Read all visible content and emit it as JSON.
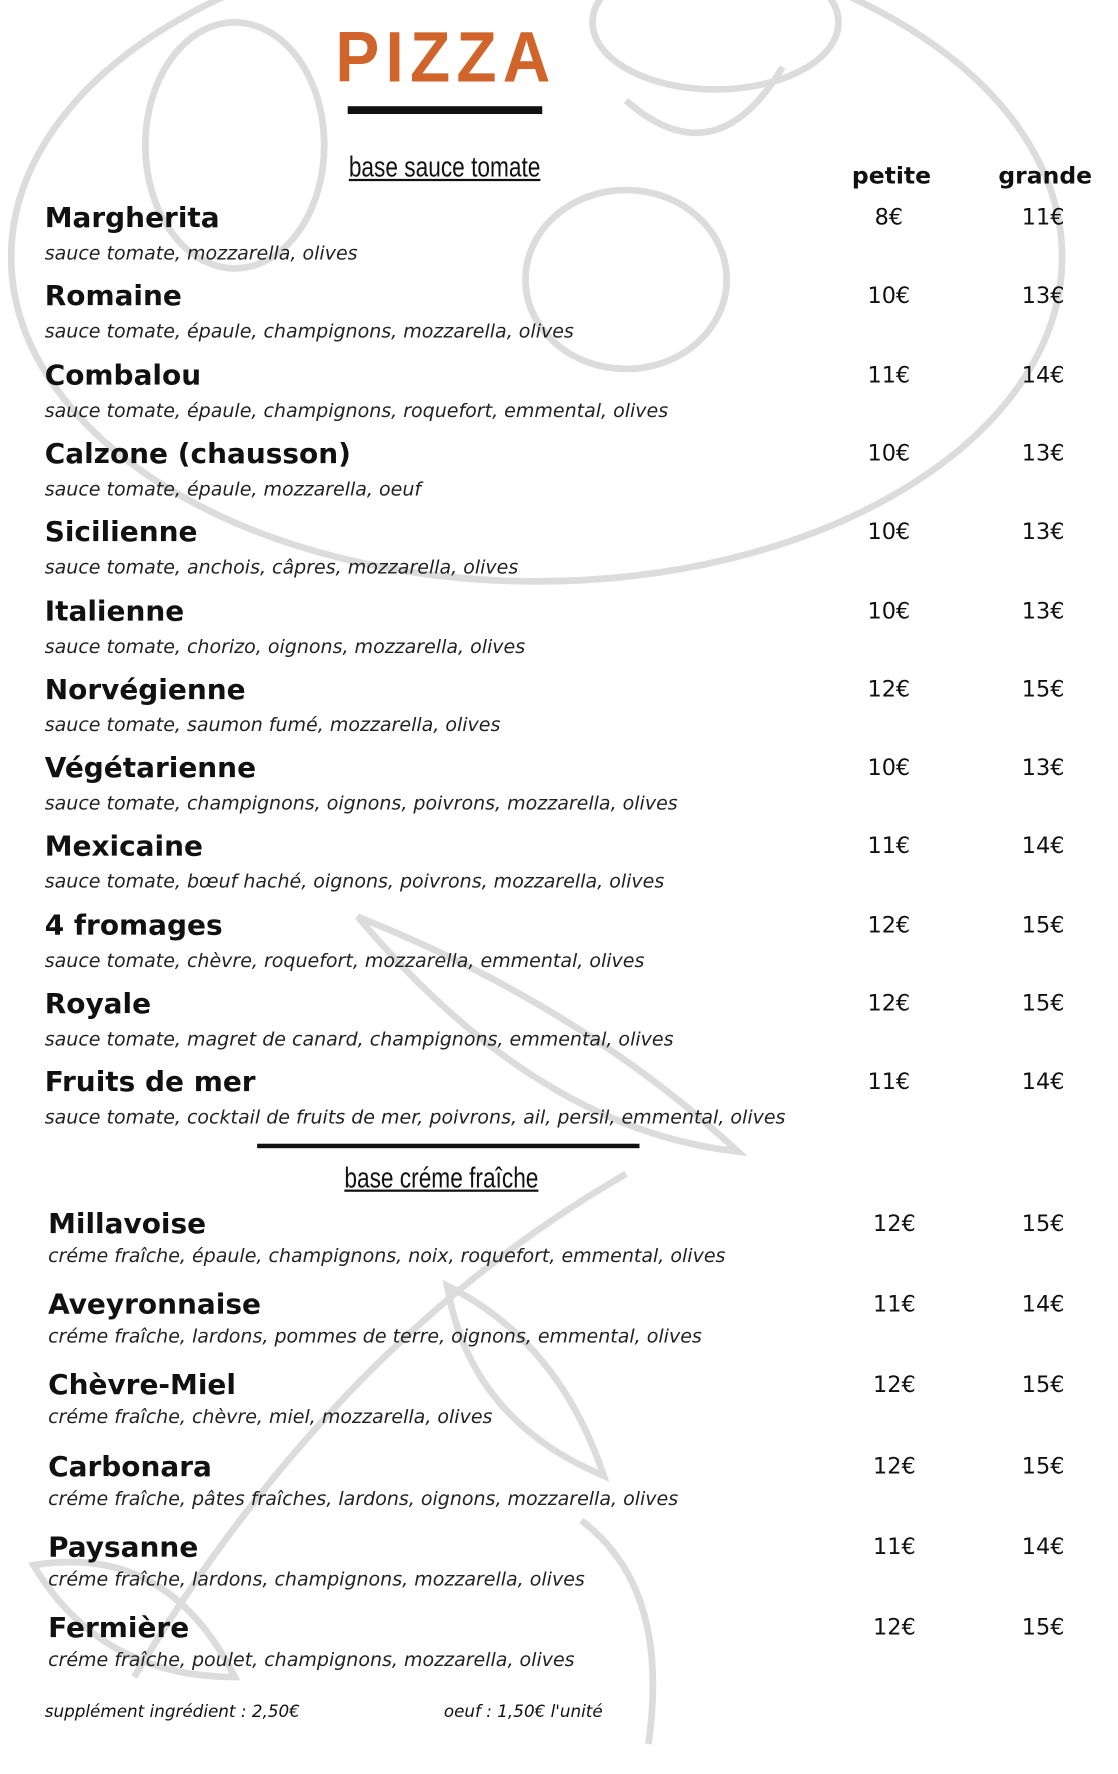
{
  "title": "PIZZA",
  "accent_color": "#d0642a",
  "columns": {
    "small": "petite",
    "large": "grande"
  },
  "sections": [
    {
      "heading": "base sauce tomate",
      "items": [
        {
          "name": "Margherita",
          "desc": "sauce tomate, mozzarella, olives",
          "small": "8€",
          "large": "11€"
        },
        {
          "name": "Romaine",
          "desc": "sauce tomate, épaule, champignons, mozzarella, olives",
          "small": "10€",
          "large": "13€"
        },
        {
          "name": "Combalou",
          "desc": "sauce tomate, épaule, champignons, roquefort, emmental, olives",
          "small": "11€",
          "large": "14€"
        },
        {
          "name": "Calzone (chausson)",
          "desc": "sauce tomate, épaule, mozzarella, oeuf",
          "small": "10€",
          "large": "13€"
        },
        {
          "name": "Sicilienne",
          "desc": "sauce tomate, anchois, câpres, mozzarella, olives",
          "small": "10€",
          "large": "13€"
        },
        {
          "name": "Italienne",
          "desc": "sauce tomate, chorizo, oignons, mozzarella, olives",
          "small": "10€",
          "large": "13€"
        },
        {
          "name": "Norvégienne",
          "desc": "sauce tomate, saumon fumé, mozzarella, olives",
          "small": "12€",
          "large": "15€"
        },
        {
          "name": "Végétarienne",
          "desc": "sauce tomate, champignons, oignons, poivrons, mozzarella, olives",
          "small": "10€",
          "large": "13€"
        },
        {
          "name": "Mexicaine",
          "desc": "sauce tomate, bœuf haché, oignons, poivrons, mozzarella, olives",
          "small": "11€",
          "large": "14€"
        },
        {
          "name": "4 fromages",
          "desc": "sauce tomate, chèvre, roquefort, mozzarella, emmental, olives",
          "small": "12€",
          "large": "15€"
        },
        {
          "name": "Royale",
          "desc": "sauce tomate, magret de canard, champignons, emmental, olives",
          "small": "12€",
          "large": "15€"
        },
        {
          "name": "Fruits de mer",
          "desc": "sauce tomate, cocktail de fruits de mer, poivrons, ail, persil, emmental, olives",
          "small": "11€",
          "large": "14€"
        }
      ]
    },
    {
      "heading": "base créme fraîche",
      "items": [
        {
          "name": "Millavoise",
          "desc": "créme fraîche, épaule, champignons, noix, roquefort, emmental, olives",
          "small": "12€",
          "large": "15€"
        },
        {
          "name": "Aveyronnaise",
          "desc": "créme fraîche, lardons, pommes de terre, oignons, emmental, olives",
          "small": "11€",
          "large": "14€"
        },
        {
          "name": "Chèvre-Miel",
          "desc": "créme fraîche, chèvre, miel, mozzarella, olives",
          "small": "12€",
          "large": "15€"
        },
        {
          "name": "Carbonara",
          "desc": "créme fraîche, pâtes fraîches, lardons, oignons, mozzarella, olives",
          "small": "12€",
          "large": "15€"
        },
        {
          "name": "Paysanne",
          "desc": "créme fraîche, lardons, champignons, mozzarella, olives",
          "small": "11€",
          "large": "14€"
        },
        {
          "name": "Fermière",
          "desc": "créme fraîche, poulet, champignons, mozzarella, olives",
          "small": "12€",
          "large": "15€"
        }
      ]
    }
  ],
  "footer": {
    "supplement": "supplément ingrédient : 2,50€",
    "egg": "oeuf : 1,50€ l'unité"
  }
}
